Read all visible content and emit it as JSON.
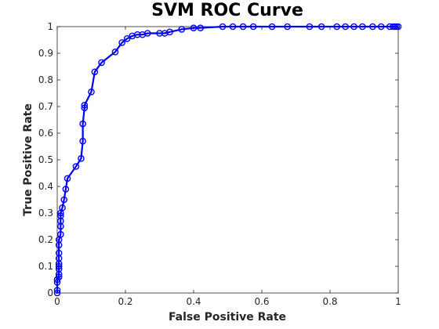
{
  "chart_data": {
    "type": "line",
    "title": "SVM ROC Curve",
    "xlabel": "False Positive Rate",
    "ylabel": "True Positive Rate",
    "xlim": [
      0,
      1
    ],
    "ylim": [
      0,
      1
    ],
    "xticks": [
      "0",
      "0.2",
      "0.4",
      "0.6",
      "0.8",
      "1"
    ],
    "yticks": [
      "0",
      "0.1",
      "0.2",
      "0.3",
      "0.4",
      "0.5",
      "0.6",
      "0.7",
      "0.8",
      "0.9",
      "1"
    ],
    "grid": false,
    "marker": "circle",
    "series": [
      {
        "color": "#0000ff",
        "x": [
          0,
          0,
          0,
          0,
          0.005,
          0.005,
          0.005,
          0.005,
          0.005,
          0.005,
          0.005,
          0.005,
          0.005,
          0.01,
          0.01,
          0.01,
          0.01,
          0.01,
          0.015,
          0.02,
          0.025,
          0.03,
          0.055,
          0.07,
          0.075,
          0.075,
          0.08,
          0.08,
          0.1,
          0.11,
          0.13,
          0.17,
          0.19,
          0.205,
          0.22,
          0.235,
          0.25,
          0.265,
          0.3,
          0.315,
          0.33,
          0.365,
          0.4,
          0.42,
          0.485,
          0.515,
          0.545,
          0.575,
          0.63,
          0.675,
          0.74,
          0.775,
          0.82,
          0.845,
          0.87,
          0.895,
          0.925,
          0.95,
          0.975,
          0.985,
          0.99,
          0.995,
          1.0
        ],
        "y": [
          0.0,
          0.01,
          0.04,
          0.05,
          0.06,
          0.07,
          0.09,
          0.1,
          0.11,
          0.13,
          0.15,
          0.18,
          0.2,
          0.22,
          0.25,
          0.27,
          0.29,
          0.3,
          0.32,
          0.35,
          0.39,
          0.43,
          0.475,
          0.505,
          0.57,
          0.635,
          0.695,
          0.705,
          0.755,
          0.83,
          0.865,
          0.905,
          0.94,
          0.955,
          0.965,
          0.97,
          0.97,
          0.975,
          0.975,
          0.975,
          0.98,
          0.99,
          0.995,
          0.995,
          1.0,
          1.0,
          1.0,
          1.0,
          1.0,
          1.0,
          1.0,
          1.0,
          1.0,
          1.0,
          1.0,
          1.0,
          1.0,
          1.0,
          1.0,
          1.0,
          1.0,
          1.0,
          1.0
        ]
      }
    ]
  }
}
